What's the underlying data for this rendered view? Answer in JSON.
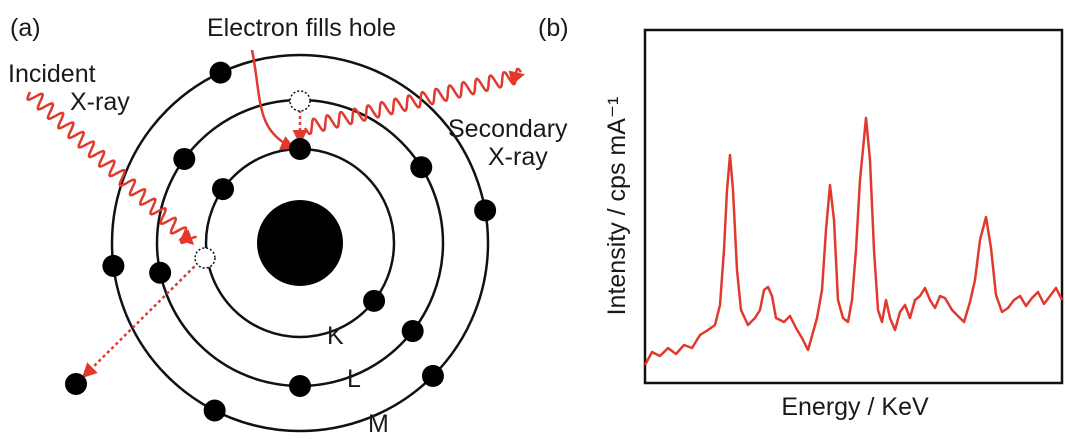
{
  "panel_a": {
    "label": "(a)",
    "top_label": "Electron fills hole",
    "incident": "Incident",
    "incident_2": "X-ray",
    "secondary": "Secondary",
    "secondary_2": "X-ray",
    "shells": [
      "K",
      "L",
      "M"
    ]
  },
  "panel_b": {
    "label": "(b)",
    "y_label": "Intensity / cps mA⁻¹",
    "x_label": "Energy / KeV"
  }
}
